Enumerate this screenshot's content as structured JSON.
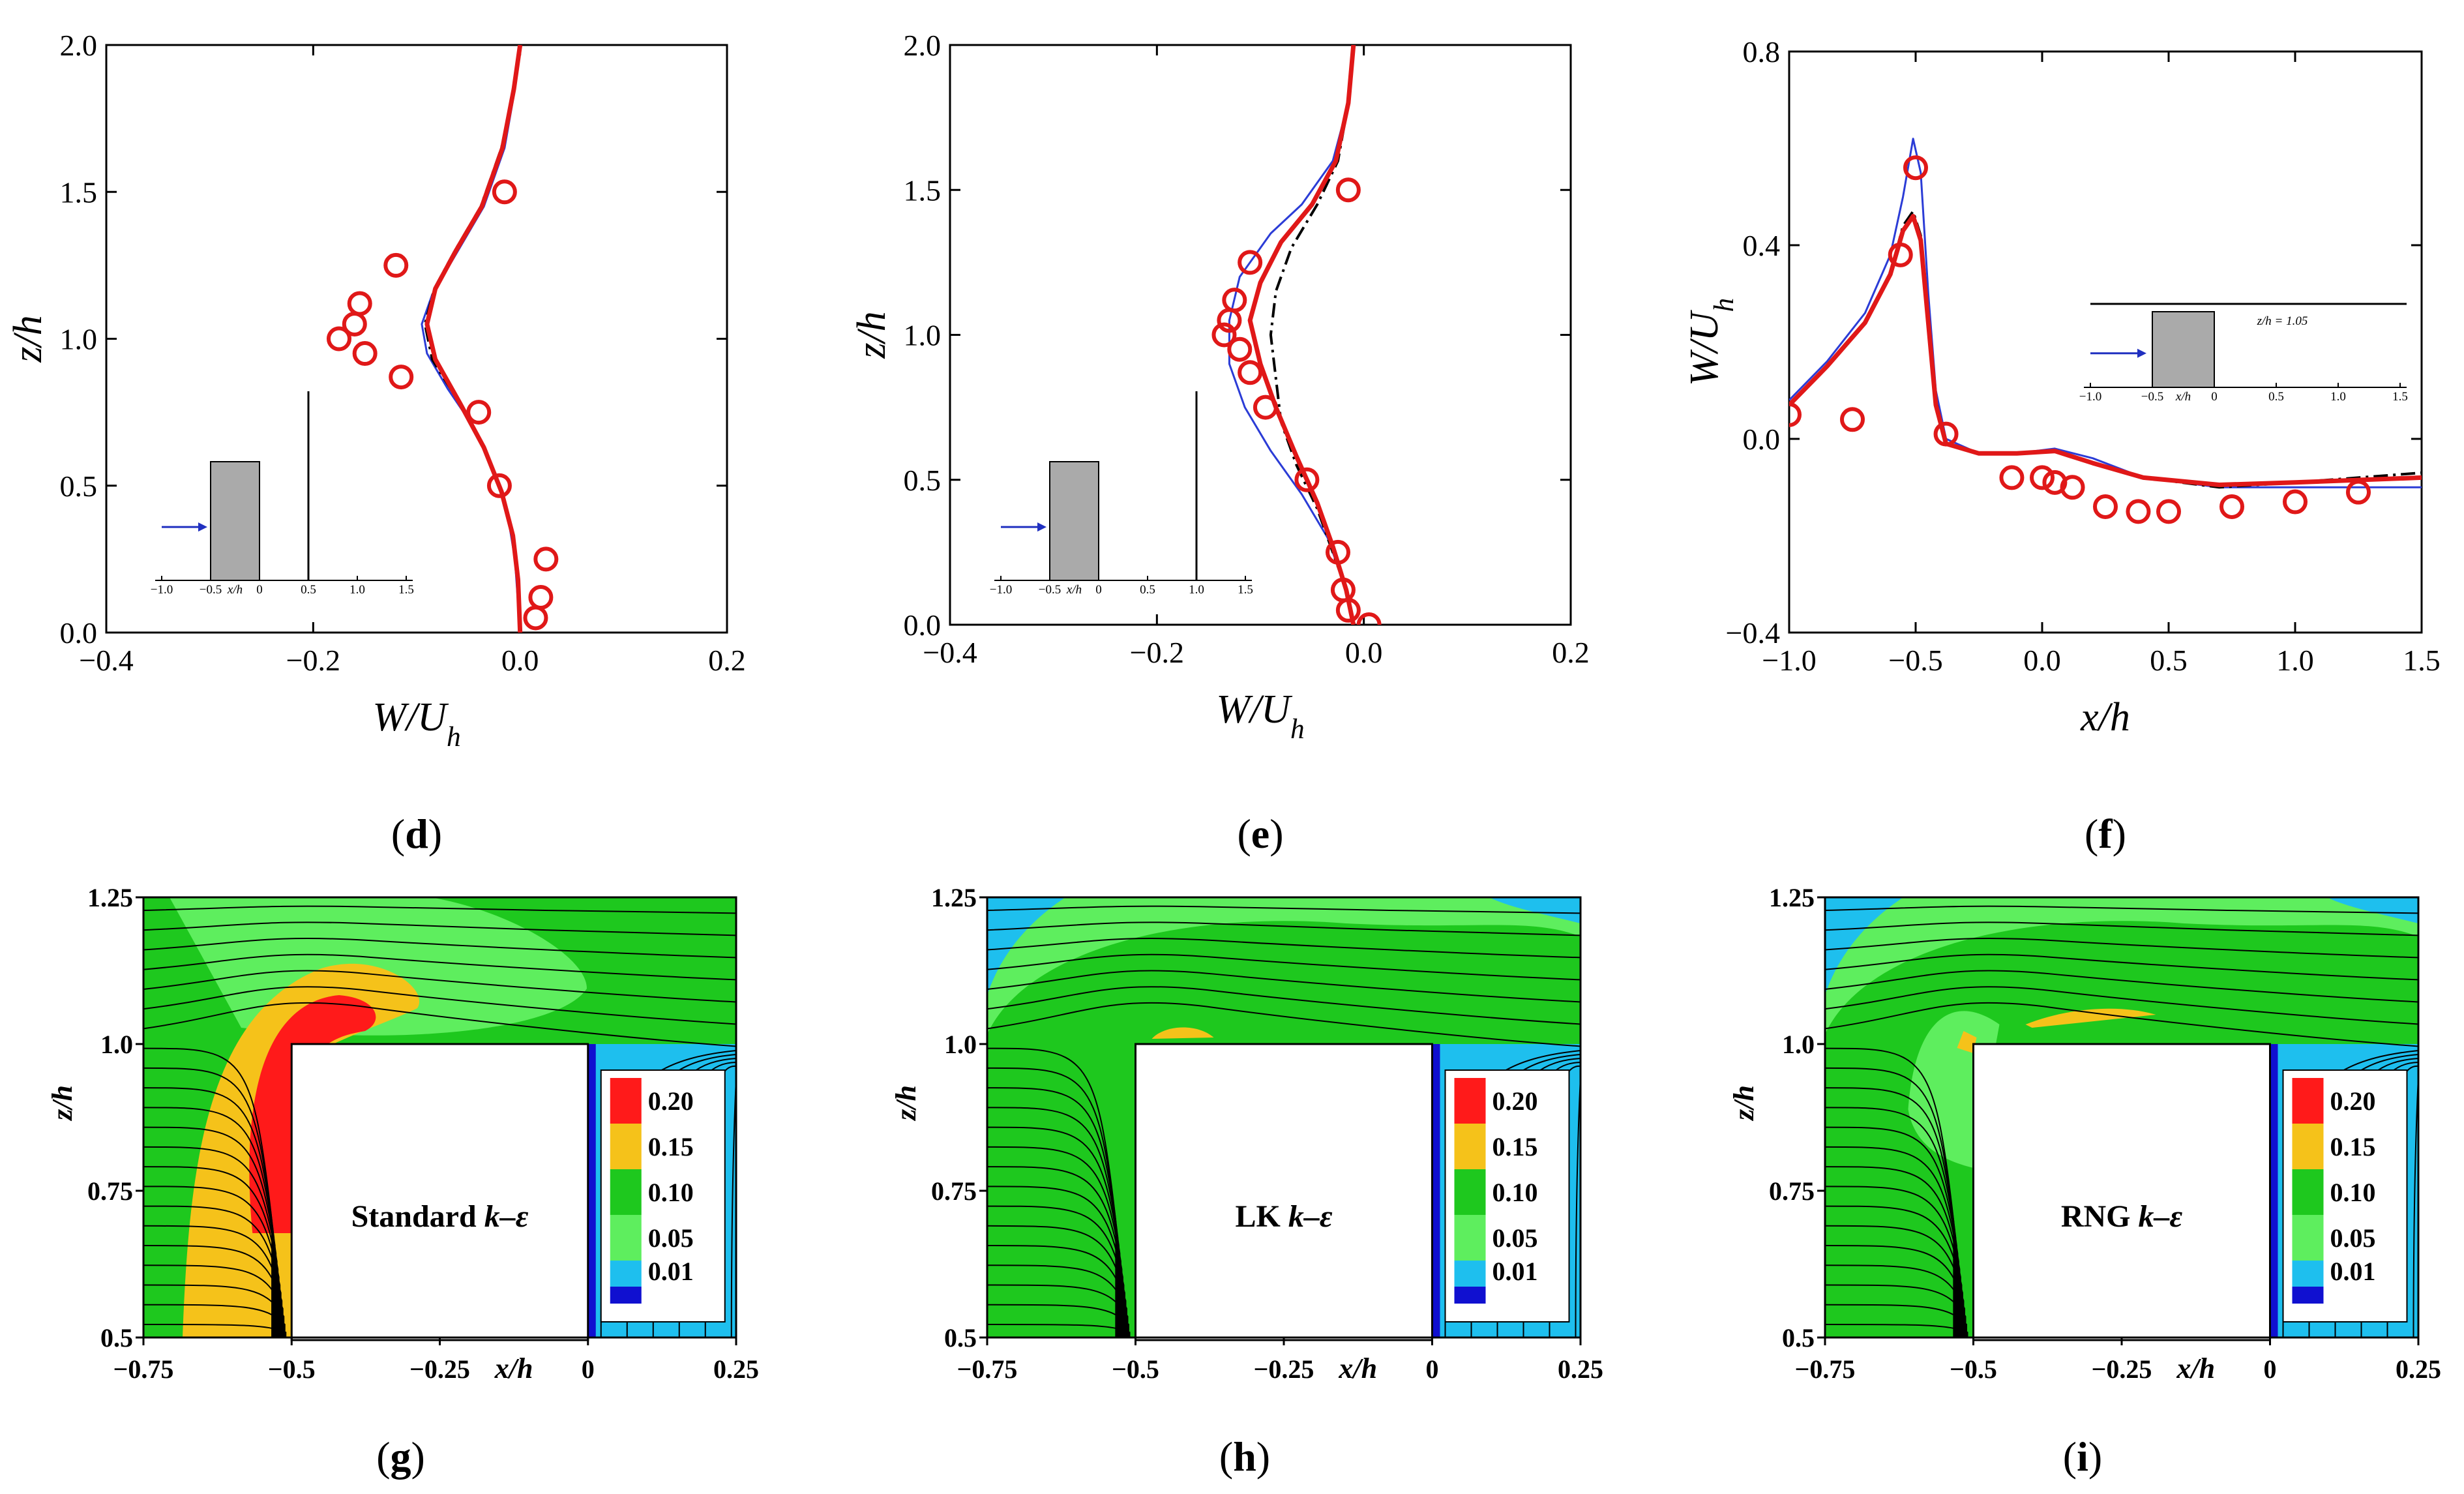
{
  "chart_data": [
    {
      "id": "d",
      "type": "line",
      "panel_label": "d",
      "xlabel": "W/U_h",
      "ylabel": "z/h",
      "xlim": [
        -0.4,
        0.2
      ],
      "ylim": [
        0,
        2.0
      ],
      "xticks": [
        "-0.4",
        "-0.2",
        "0.0",
        "0.2"
      ],
      "yticks": [
        "0.0",
        "0.5",
        "1.0",
        "1.5",
        "2.0"
      ],
      "series": [
        {
          "name": "blue",
          "color": "#2b3cd6",
          "points": [
            [
              0.0,
              2.0
            ],
            [
              -0.005,
              1.85
            ],
            [
              -0.015,
              1.65
            ],
            [
              -0.035,
              1.45
            ],
            [
              -0.06,
              1.3
            ],
            [
              -0.085,
              1.15
            ],
            [
              -0.095,
              1.05
            ],
            [
              -0.09,
              0.95
            ],
            [
              -0.07,
              0.83
            ],
            [
              -0.045,
              0.7
            ],
            [
              -0.025,
              0.55
            ],
            [
              -0.012,
              0.4
            ],
            [
              -0.005,
              0.25
            ],
            [
              -0.002,
              0.1
            ],
            [
              0.0,
              0.0
            ]
          ]
        },
        {
          "name": "black-dashdot",
          "color": "#000000",
          "points": [
            [
              0.0,
              2.0
            ],
            [
              -0.006,
              1.85
            ],
            [
              -0.018,
              1.65
            ],
            [
              -0.038,
              1.45
            ],
            [
              -0.063,
              1.3
            ],
            [
              -0.083,
              1.17
            ],
            [
              -0.092,
              1.05
            ],
            [
              -0.085,
              0.93
            ],
            [
              -0.062,
              0.8
            ],
            [
              -0.038,
              0.65
            ],
            [
              -0.02,
              0.5
            ],
            [
              -0.008,
              0.35
            ],
            [
              -0.002,
              0.2
            ],
            [
              0.0,
              0.0
            ]
          ]
        },
        {
          "name": "red",
          "color": "#e01818",
          "points": [
            [
              0.0,
              2.0
            ],
            [
              -0.006,
              1.85
            ],
            [
              -0.017,
              1.65
            ],
            [
              -0.037,
              1.45
            ],
            [
              -0.062,
              1.3
            ],
            [
              -0.082,
              1.17
            ],
            [
              -0.09,
              1.05
            ],
            [
              -0.082,
              0.93
            ],
            [
              -0.058,
              0.78
            ],
            [
              -0.035,
              0.63
            ],
            [
              -0.018,
              0.48
            ],
            [
              -0.007,
              0.33
            ],
            [
              -0.002,
              0.18
            ],
            [
              0.0,
              0.0
            ]
          ]
        }
      ],
      "experiment": {
        "name": "experiment",
        "color": "#e01818",
        "points": [
          [
            -0.015,
            1.5
          ],
          [
            -0.12,
            1.25
          ],
          [
            -0.155,
            1.12
          ],
          [
            -0.16,
            1.05
          ],
          [
            -0.175,
            1.0
          ],
          [
            -0.15,
            0.95
          ],
          [
            -0.115,
            0.87
          ],
          [
            -0.04,
            0.75
          ],
          [
            -0.02,
            0.5
          ],
          [
            0.025,
            0.25
          ],
          [
            0.02,
            0.12
          ],
          [
            0.015,
            0.05
          ]
        ]
      },
      "inset": {
        "xticks": [
          "-1.0",
          "-0.5",
          "x/h",
          "0",
          "0.5",
          "1.0",
          "1.5"
        ],
        "line_at": 0.5
      }
    },
    {
      "id": "e",
      "type": "line",
      "panel_label": "e",
      "xlabel": "W/U_h",
      "ylabel": "z/h",
      "xlim": [
        -0.4,
        0.2
      ],
      "ylim": [
        0,
        2.0
      ],
      "xticks": [
        "-0.4",
        "-0.2",
        "0.0",
        "0.2"
      ],
      "yticks": [
        "0.0",
        "0.5",
        "1.0",
        "1.5",
        "2.0"
      ],
      "series": [
        {
          "name": "blue",
          "color": "#2b3cd6",
          "points": [
            [
              -0.01,
              2.0
            ],
            [
              -0.015,
              1.8
            ],
            [
              -0.03,
              1.6
            ],
            [
              -0.06,
              1.45
            ],
            [
              -0.09,
              1.35
            ],
            [
              -0.12,
              1.2
            ],
            [
              -0.13,
              1.05
            ],
            [
              -0.13,
              0.9
            ],
            [
              -0.115,
              0.75
            ],
            [
              -0.09,
              0.6
            ],
            [
              -0.06,
              0.45
            ],
            [
              -0.035,
              0.3
            ],
            [
              -0.02,
              0.15
            ],
            [
              -0.01,
              0.0
            ]
          ]
        },
        {
          "name": "black-dashdot",
          "color": "#000000",
          "points": [
            [
              -0.01,
              2.0
            ],
            [
              -0.015,
              1.8
            ],
            [
              -0.025,
              1.6
            ],
            [
              -0.045,
              1.45
            ],
            [
              -0.07,
              1.3
            ],
            [
              -0.085,
              1.15
            ],
            [
              -0.09,
              1.0
            ],
            [
              -0.085,
              0.85
            ],
            [
              -0.08,
              0.7
            ],
            [
              -0.065,
              0.55
            ],
            [
              -0.045,
              0.4
            ],
            [
              -0.03,
              0.25
            ],
            [
              -0.015,
              0.1
            ],
            [
              -0.01,
              0.0
            ]
          ]
        },
        {
          "name": "red",
          "color": "#e01818",
          "points": [
            [
              -0.01,
              2.0
            ],
            [
              -0.015,
              1.8
            ],
            [
              -0.027,
              1.6
            ],
            [
              -0.05,
              1.45
            ],
            [
              -0.08,
              1.32
            ],
            [
              -0.1,
              1.18
            ],
            [
              -0.11,
              1.05
            ],
            [
              -0.1,
              0.9
            ],
            [
              -0.085,
              0.75
            ],
            [
              -0.065,
              0.58
            ],
            [
              -0.045,
              0.42
            ],
            [
              -0.03,
              0.27
            ],
            [
              -0.017,
              0.12
            ],
            [
              -0.01,
              0.0
            ]
          ]
        }
      ],
      "experiment": {
        "name": "experiment",
        "color": "#e01818",
        "points": [
          [
            -0.015,
            1.5
          ],
          [
            -0.11,
            1.25
          ],
          [
            -0.125,
            1.12
          ],
          [
            -0.13,
            1.05
          ],
          [
            -0.135,
            1.0
          ],
          [
            -0.12,
            0.95
          ],
          [
            -0.11,
            0.87
          ],
          [
            -0.095,
            0.75
          ],
          [
            -0.055,
            0.5
          ],
          [
            -0.025,
            0.25
          ],
          [
            -0.02,
            0.12
          ],
          [
            -0.015,
            0.05
          ],
          [
            0.005,
            0.0
          ]
        ]
      },
      "inset": {
        "xticks": [
          "-1.0",
          "-0.5",
          "x/h",
          "0",
          "0.5",
          "1.0",
          "1.5"
        ],
        "line_at": 1.0
      }
    },
    {
      "id": "f",
      "type": "line",
      "panel_label": "f",
      "xlabel": "x/h",
      "ylabel": "W/U_h",
      "xlim": [
        -1.0,
        1.5
      ],
      "ylim": [
        -0.4,
        0.8
      ],
      "xticks": [
        "-1.0",
        "-0.5",
        "0.0",
        "0.5",
        "1.0",
        "1.5"
      ],
      "yticks": [
        "-0.4",
        "0.0",
        "0.4",
        "0.8"
      ],
      "series": [
        {
          "name": "blue",
          "color": "#2b3cd6",
          "points": [
            [
              -1.0,
              0.08
            ],
            [
              -0.85,
              0.16
            ],
            [
              -0.7,
              0.26
            ],
            [
              -0.6,
              0.38
            ],
            [
              -0.55,
              0.5
            ],
            [
              -0.51,
              0.62
            ],
            [
              -0.48,
              0.55
            ],
            [
              -0.45,
              0.3
            ],
            [
              -0.42,
              0.1
            ],
            [
              -0.38,
              0.0
            ],
            [
              -0.25,
              -0.03
            ],
            [
              -0.1,
              -0.03
            ],
            [
              0.05,
              -0.02
            ],
            [
              0.2,
              -0.04
            ],
            [
              0.4,
              -0.08
            ],
            [
              0.7,
              -0.1
            ],
            [
              1.0,
              -0.1
            ],
            [
              1.5,
              -0.1
            ]
          ]
        },
        {
          "name": "black-dashdot",
          "color": "#000000",
          "points": [
            [
              -1.0,
              0.07
            ],
            [
              -0.85,
              0.15
            ],
            [
              -0.7,
              0.24
            ],
            [
              -0.6,
              0.34
            ],
            [
              -0.55,
              0.44
            ],
            [
              -0.51,
              0.47
            ],
            [
              -0.48,
              0.42
            ],
            [
              -0.45,
              0.25
            ],
            [
              -0.42,
              0.08
            ],
            [
              -0.38,
              -0.01
            ],
            [
              -0.25,
              -0.03
            ],
            [
              -0.1,
              -0.03
            ],
            [
              0.05,
              -0.025
            ],
            [
              0.2,
              -0.05
            ],
            [
              0.4,
              -0.08
            ],
            [
              0.7,
              -0.1
            ],
            [
              1.0,
              -0.09
            ],
            [
              1.5,
              -0.07
            ]
          ]
        },
        {
          "name": "red",
          "color": "#e01818",
          "points": [
            [
              -1.0,
              0.07
            ],
            [
              -0.85,
              0.15
            ],
            [
              -0.7,
              0.24
            ],
            [
              -0.6,
              0.34
            ],
            [
              -0.55,
              0.43
            ],
            [
              -0.51,
              0.46
            ],
            [
              -0.48,
              0.41
            ],
            [
              -0.45,
              0.24
            ],
            [
              -0.42,
              0.07
            ],
            [
              -0.38,
              -0.01
            ],
            [
              -0.25,
              -0.03
            ],
            [
              -0.1,
              -0.03
            ],
            [
              0.05,
              -0.025
            ],
            [
              0.2,
              -0.05
            ],
            [
              0.4,
              -0.08
            ],
            [
              0.7,
              -0.095
            ],
            [
              1.0,
              -0.09
            ],
            [
              1.5,
              -0.08
            ]
          ]
        }
      ],
      "experiment": {
        "name": "experiment",
        "color": "#e01818",
        "points": [
          [
            -1.0,
            0.05
          ],
          [
            -0.75,
            0.04
          ],
          [
            -0.56,
            0.38
          ],
          [
            -0.5,
            0.56
          ],
          [
            -0.38,
            0.01
          ],
          [
            -0.12,
            -0.08
          ],
          [
            0.0,
            -0.08
          ],
          [
            0.05,
            -0.09
          ],
          [
            0.12,
            -0.1
          ],
          [
            0.25,
            -0.14
          ],
          [
            0.38,
            -0.15
          ],
          [
            0.5,
            -0.15
          ],
          [
            0.75,
            -0.14
          ],
          [
            1.0,
            -0.13
          ],
          [
            1.25,
            -0.11
          ]
        ]
      },
      "inset": {
        "xticks": [
          "-1.0",
          "-0.5",
          "x/h",
          "0",
          "0.5",
          "1.0",
          "1.5"
        ],
        "label": "z/h = 1.05"
      }
    },
    {
      "id": "g",
      "type": "heatmap",
      "panel_label": "g",
      "model_prefix": "Standard ",
      "model_k": "k",
      "model_eps": "–ε",
      "xlabel": "x/h",
      "ylabel": "z/h",
      "xlim": [
        -0.75,
        0.25
      ],
      "ylim": [
        0.5,
        1.25
      ],
      "xticks": [
        "-0.75",
        "-0.5",
        "-0.25",
        "0",
        "0.25"
      ],
      "yticks": [
        "0.5",
        "0.75",
        "1.0",
        "1.25"
      ],
      "block": {
        "x0": -0.5,
        "x1": 0.0,
        "top": 1.0
      }
    },
    {
      "id": "h",
      "type": "heatmap",
      "panel_label": "h",
      "model_prefix": "LK ",
      "model_k": "k",
      "model_eps": "–ε",
      "xlabel": "x/h",
      "ylabel": "z/h",
      "xlim": [
        -0.75,
        0.25
      ],
      "ylim": [
        0.5,
        1.25
      ],
      "xticks": [
        "-0.75",
        "-0.5",
        "-0.25",
        "0",
        "0.25"
      ],
      "yticks": [
        "0.5",
        "0.75",
        "1.0",
        "1.25"
      ],
      "block": {
        "x0": -0.5,
        "x1": 0.0,
        "top": 1.0
      }
    },
    {
      "id": "i",
      "type": "heatmap",
      "panel_label": "i",
      "model_prefix": "RNG ",
      "model_k": "k",
      "model_eps": "–ε",
      "xlabel": "x/h",
      "ylabel": "z/h",
      "xlim": [
        -0.75,
        0.25
      ],
      "ylim": [
        0.5,
        1.25
      ],
      "xticks": [
        "-0.75",
        "-0.5",
        "-0.25",
        "0",
        "0.25"
      ],
      "yticks": [
        "0.5",
        "0.75",
        "1.0",
        "1.25"
      ],
      "block": {
        "x0": -0.5,
        "x1": 0.0,
        "top": 1.0
      }
    }
  ],
  "legend_levels": [
    {
      "label": "0.20",
      "color": "#ff1a1a"
    },
    {
      "label": "0.15",
      "color": "#f5c21a"
    },
    {
      "label": "0.10",
      "color": "#1ec81e"
    },
    {
      "label": "0.05",
      "color": "#5eee5e"
    },
    {
      "label": "0.01",
      "color": "#1ebfee"
    },
    {
      "label": "",
      "color": "#1010d0"
    }
  ],
  "colors": {
    "blue": "#2b3cd6",
    "red": "#e01818",
    "block_grey": "#aaaaaa",
    "arrow": "#2030c0"
  }
}
